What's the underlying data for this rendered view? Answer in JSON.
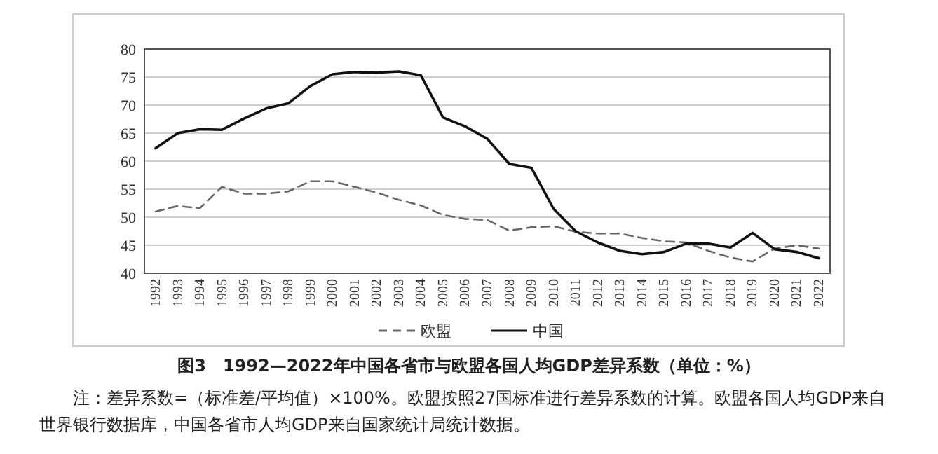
{
  "chart_data": {
    "type": "line",
    "title": "图3　1992—2022年中国各省市与欧盟各国人均GDP差异系数（单位：%）",
    "annotations": [
      "注：差异系数=（标准差/平均值）×100%。欧盟按照27国标准进行差异系数的计算。欧盟各国人均GDP来自世界银行数据库，中国各省市人均GDP来自国家统计局统计数据。"
    ],
    "categories": [
      "1992",
      "1993",
      "1994",
      "1995",
      "1996",
      "1997",
      "1998",
      "1999",
      "2000",
      "2001",
      "2002",
      "2003",
      "2004",
      "2005",
      "2006",
      "2007",
      "2008",
      "2009",
      "2010",
      "2011",
      "2012",
      "2013",
      "2014",
      "2015",
      "2016",
      "2017",
      "2018",
      "2019",
      "2020",
      "2021",
      "2022"
    ],
    "series": [
      {
        "name": "欧盟",
        "color": "#666666",
        "line_style": "dashed",
        "values": [
          51.0,
          52.0,
          51.6,
          55.4,
          54.2,
          54.2,
          54.6,
          56.4,
          56.4,
          55.4,
          54.4,
          53.1,
          52.1,
          50.4,
          49.7,
          49.5,
          47.6,
          48.2,
          48.4,
          47.4,
          47.1,
          47.1,
          46.3,
          45.7,
          45.5,
          44.0,
          42.8,
          42.1,
          44.4,
          45.0,
          44.4
        ]
      },
      {
        "name": "中国",
        "color": "#111111",
        "line_style": "solid",
        "values": [
          62.3,
          65.0,
          65.7,
          65.6,
          67.6,
          69.4,
          70.3,
          73.4,
          75.5,
          75.9,
          75.8,
          76.0,
          75.3,
          67.8,
          66.2,
          64.0,
          59.5,
          58.8,
          51.5,
          47.5,
          45.5,
          44.0,
          43.4,
          43.8,
          45.3,
          45.3,
          44.6,
          47.2,
          44.3,
          43.8,
          42.7
        ]
      }
    ],
    "ylim": [
      40,
      80
    ],
    "yticks": [
      40,
      45,
      50,
      55,
      60,
      65,
      70,
      75,
      80
    ],
    "grid": "y",
    "legend": "bottom",
    "marker": "none"
  }
}
